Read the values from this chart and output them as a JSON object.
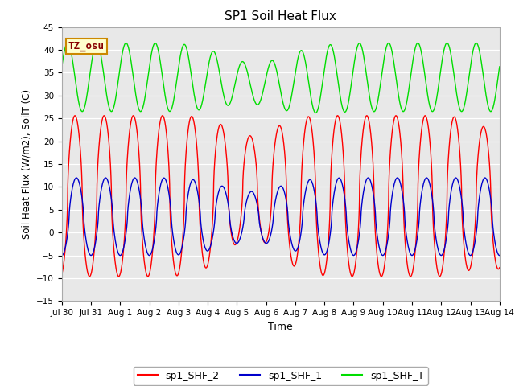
{
  "title": "SP1 Soil Heat Flux",
  "xlabel": "Time",
  "ylabel": "Soil Heat Flux (W/m2), SoilT (C)",
  "ylim": [
    -15,
    45
  ],
  "ytick_vals": [
    -15,
    -10,
    -5,
    0,
    5,
    10,
    15,
    20,
    25,
    30,
    35,
    40,
    45
  ],
  "xtick_labels": [
    "Jul 30",
    "Jul 31",
    "Aug 1",
    "Aug 2",
    "Aug 3",
    "Aug 4",
    "Aug 5",
    "Aug 6",
    "Aug 7",
    "Aug 8",
    "Aug 9",
    "Aug 10",
    "Aug 11",
    "Aug 12",
    "Aug 13",
    "Aug 14"
  ],
  "bg_color": "#e8e8e8",
  "line_red": "#ff0000",
  "line_blue": "#0000cc",
  "line_green": "#00dd00",
  "annotation_text": "TZ_osu",
  "annotation_bg": "#ffffcc",
  "annotation_border": "#cc8800",
  "legend_labels": [
    "sp1_SHF_2",
    "sp1_SHF_1",
    "sp1_SHF_T"
  ]
}
